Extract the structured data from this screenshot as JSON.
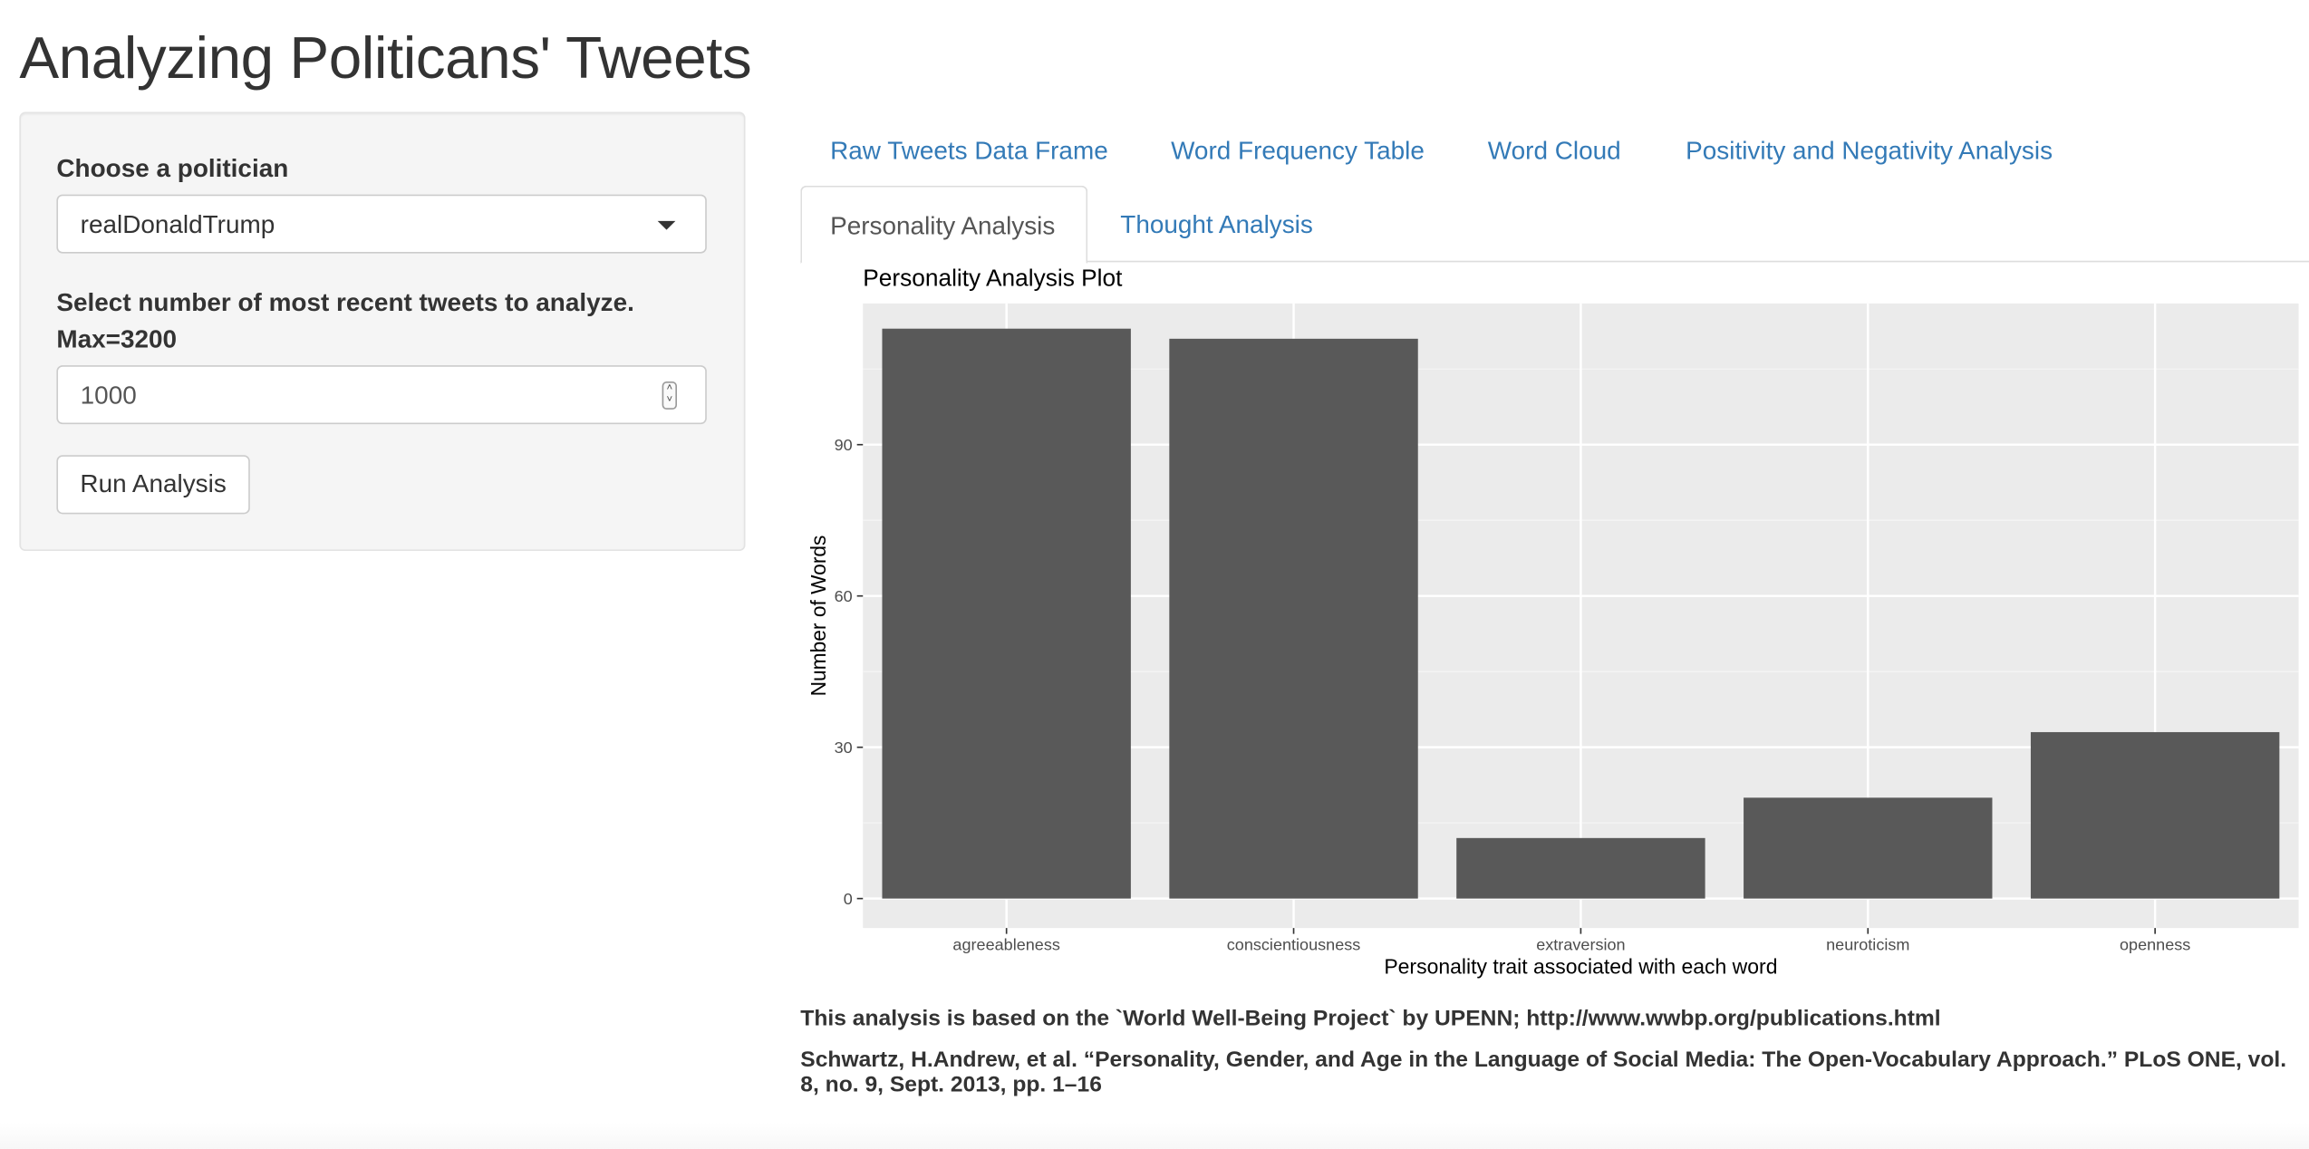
{
  "app": {
    "title": "Analyzing Politicans' Tweets"
  },
  "sidebar": {
    "politician_label": "Choose a politician",
    "politician_selected": "realDonaldTrump",
    "tweets_label_line1": "Select number of most recent tweets to analyze.",
    "tweets_label_line2": "Max=3200",
    "tweets_value": "1000",
    "run_button_label": "Run Analysis"
  },
  "tabs": {
    "row1": [
      "Raw Tweets Data Frame",
      "Word Frequency Table",
      "Word Cloud",
      "Positivity and Negativity Analysis"
    ],
    "active": "Personality Analysis",
    "thought": "Thought Analysis"
  },
  "chart_data": {
    "type": "bar",
    "title": "Personality Analysis Plot",
    "xlabel": "Personality trait associated with each word",
    "ylabel": "Number of Words",
    "categories": [
      "agreeableness",
      "conscientiousness",
      "extraversion",
      "neuroticism",
      "openness"
    ],
    "values": [
      113,
      111,
      12,
      20,
      33
    ],
    "ylim": [
      0,
      118
    ],
    "yticks": [
      0,
      30,
      60,
      90
    ],
    "grid": true,
    "bar_color": "#595959",
    "panel_color": "#ebebeb"
  },
  "footer": {
    "source": "This analysis is based on the `World Well-Being Project` by UPENN; http://www.wwbp.org/publications.html",
    "citation": "Schwartz, H.Andrew, et al. “Personality, Gender, and Age in the Language of Social Media: The Open-Vocabulary Approach.” PLoS ONE, vol. 8, no. 9, Sept. 2013, pp. 1–16"
  }
}
